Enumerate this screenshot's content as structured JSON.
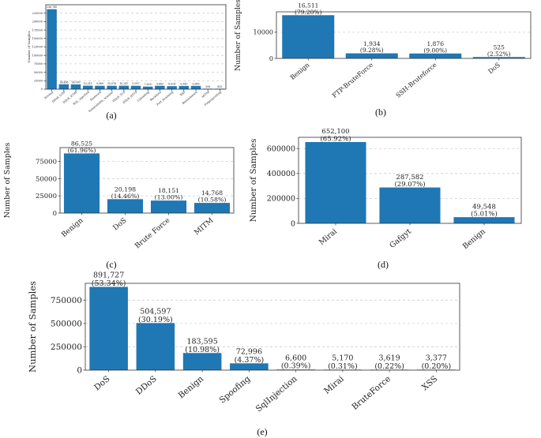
{
  "chart_data": [
    {
      "id": "a",
      "panel_label": "(a)",
      "type": "bar",
      "ylabel": "Number of Samples",
      "ylim": [
        0,
        250000
      ],
      "yticks": [
        0,
        25000,
        50000,
        75000,
        100000,
        125000,
        150000,
        175000,
        200000,
        225000
      ],
      "grid": true,
      "categories": [
        "Normal",
        "DDoS_UDP",
        "DDoS_ICMP",
        "SQL_injection",
        "Password",
        "Vulnerability_scanner",
        "DDoS_TCP",
        "DDoS_HTTP",
        "Uploading",
        "Backdoor",
        "Port_Scanning",
        "XSS",
        "Ransomware",
        "MITM",
        "Fingerprinting"
      ],
      "values": [
        236745,
        14498,
        14090,
        10311,
        9989,
        10076,
        10247,
        9997,
        7629,
        9883,
        8924,
        9543,
        9689,
        358,
        853
      ],
      "labels": [
        "236,745",
        "14,498",
        "14,090",
        "10,311",
        "9,989",
        "10,076",
        "10,247",
        "9,997",
        "7,629",
        "9,883",
        "8,924",
        "9,543",
        "9,689",
        "358",
        "853"
      ]
    },
    {
      "id": "b",
      "panel_label": "(b)",
      "type": "bar",
      "ylabel": "Number of Samples",
      "ylim": [
        0,
        17800
      ],
      "yticks": [
        0,
        10000
      ],
      "grid": true,
      "categories": [
        "Benign",
        "FTP-BruteForce",
        "SSH-Bruteforce",
        "DoS"
      ],
      "values": [
        16511,
        1934,
        1876,
        525
      ],
      "labels": [
        "16,511",
        "1,934",
        "1,876",
        "525"
      ],
      "percents": [
        "(79.20%)",
        "(9.28%)",
        "(9.00%)",
        "(2.52%)"
      ]
    },
    {
      "id": "c",
      "panel_label": "(c)",
      "type": "bar",
      "ylabel": "Number of Samples",
      "ylim": [
        0,
        95000
      ],
      "yticks": [
        0,
        25000,
        50000,
        75000
      ],
      "grid": true,
      "categories": [
        "Benign",
        "DoS",
        "Brute Force",
        "MITM"
      ],
      "values": [
        86525,
        20198,
        18151,
        14768
      ],
      "labels": [
        "86,525",
        "20,198",
        "18,151",
        "14,768"
      ],
      "percents": [
        "(61.96%)",
        "(14.46%)",
        "(13.00%)",
        "(10.58%)"
      ]
    },
    {
      "id": "d",
      "panel_label": "(d)",
      "type": "bar",
      "ylabel": "Number of Samples",
      "ylim": [
        0,
        690000
      ],
      "yticks": [
        0,
        200000,
        400000,
        600000
      ],
      "grid": true,
      "categories": [
        "Mirai",
        "Gafgyt",
        "Benign"
      ],
      "values": [
        652100,
        287582,
        49548
      ],
      "labels": [
        "652,100",
        "287,582",
        "49,548"
      ],
      "percents": [
        "(65.92%)",
        "(29.07%)",
        "(5.01%)"
      ]
    },
    {
      "id": "e",
      "panel_label": "(e)",
      "type": "bar",
      "ylabel": "Number of Samples",
      "ylim": [
        0,
        930000
      ],
      "yticks": [
        0,
        250000,
        500000,
        750000
      ],
      "grid": true,
      "categories": [
        "DoS",
        "DDoS",
        "Benign",
        "Spoofing",
        "SqlInjection",
        "Mirai",
        "BruteForce",
        "XSS"
      ],
      "values": [
        891727,
        504597,
        183595,
        72996,
        6600,
        5170,
        3619,
        3377
      ],
      "labels": [
        "891,727",
        "504,597",
        "183,595",
        "72,996",
        "6,600",
        "5,170",
        "3,619",
        "3,377"
      ],
      "percents": [
        "(53.34%)",
        "(30.19%)",
        "(10.98%)",
        "(4.37%)",
        "(0.39%)",
        "(0.31%)",
        "(0.22%)",
        "(0.20%)"
      ]
    }
  ],
  "colors": {
    "bar": "#1f77b4"
  }
}
